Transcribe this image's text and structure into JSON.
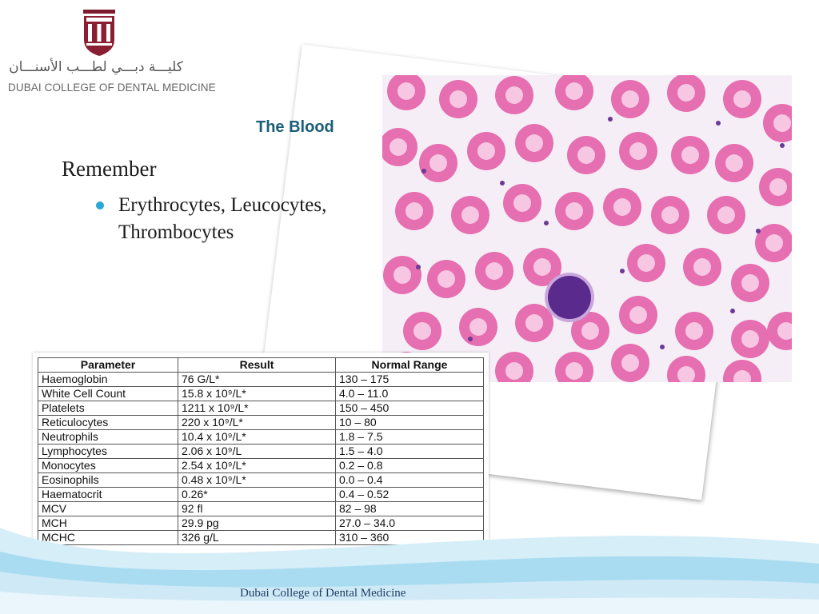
{
  "logo": {
    "arabic": "كليـــة دبـــي لطـــب الأسنـــان",
    "english": "DUBAI COLLEGE OF DENTAL MEDICINE"
  },
  "slide": {
    "title": "The Blood",
    "heading": "Remember",
    "bullets": [
      "Erythrocytes, Leucocytes, Thrombocytes"
    ]
  },
  "image": {
    "subject": "blood smear micrograph"
  },
  "table": {
    "headers": [
      "Parameter",
      "Result",
      "Normal Range"
    ],
    "rows": [
      {
        "parameter": "Haemoglobin",
        "result": "76 G/L*",
        "range": "130 – 175"
      },
      {
        "parameter": "White Cell Count",
        "result": "15.8 x 10⁹/L*",
        "range": "4.0 – 11.0"
      },
      {
        "parameter": "Platelets",
        "result": "1211 x 10⁹/L*",
        "range": "150 – 450"
      },
      {
        "parameter": "Reticulocytes",
        "result": "220 x 10⁹/L*",
        "range": "10 – 80"
      },
      {
        "parameter": "Neutrophils",
        "result": "10.4 x 10⁹/L*",
        "range": "1.8 – 7.5"
      },
      {
        "parameter": "Lymphocytes",
        "result": "2.06 x 10⁹/L",
        "range": "1.5 – 4.0"
      },
      {
        "parameter": "Monocytes",
        "result": "2.54 x 10⁹/L*",
        "range": "0.2 – 0.8"
      },
      {
        "parameter": "Eosinophils",
        "result": "0.48 x 10⁹/L*",
        "range": "0.0 – 0.4"
      },
      {
        "parameter": "Haematocrit",
        "result": "0.26*",
        "range": "0.4 – 0.52"
      },
      {
        "parameter": "MCV",
        "result": "92 fl",
        "range": "82 – 98"
      },
      {
        "parameter": "MCH",
        "result": "29.9 pg",
        "range": "27.0 – 34.0"
      },
      {
        "parameter": "MCHC",
        "result": "326 g/L",
        "range": "310 – 360"
      }
    ]
  },
  "footer": {
    "text": "Dubai College of Dental Medicine"
  },
  "colors": {
    "title": "#1a5e78",
    "bullet": "#2aa7d4",
    "rbc": "#e56fb0",
    "rbc_center": "#f7c6e2",
    "lymphocyte": "#5a2a8c",
    "wave": "#6fc3e6"
  }
}
